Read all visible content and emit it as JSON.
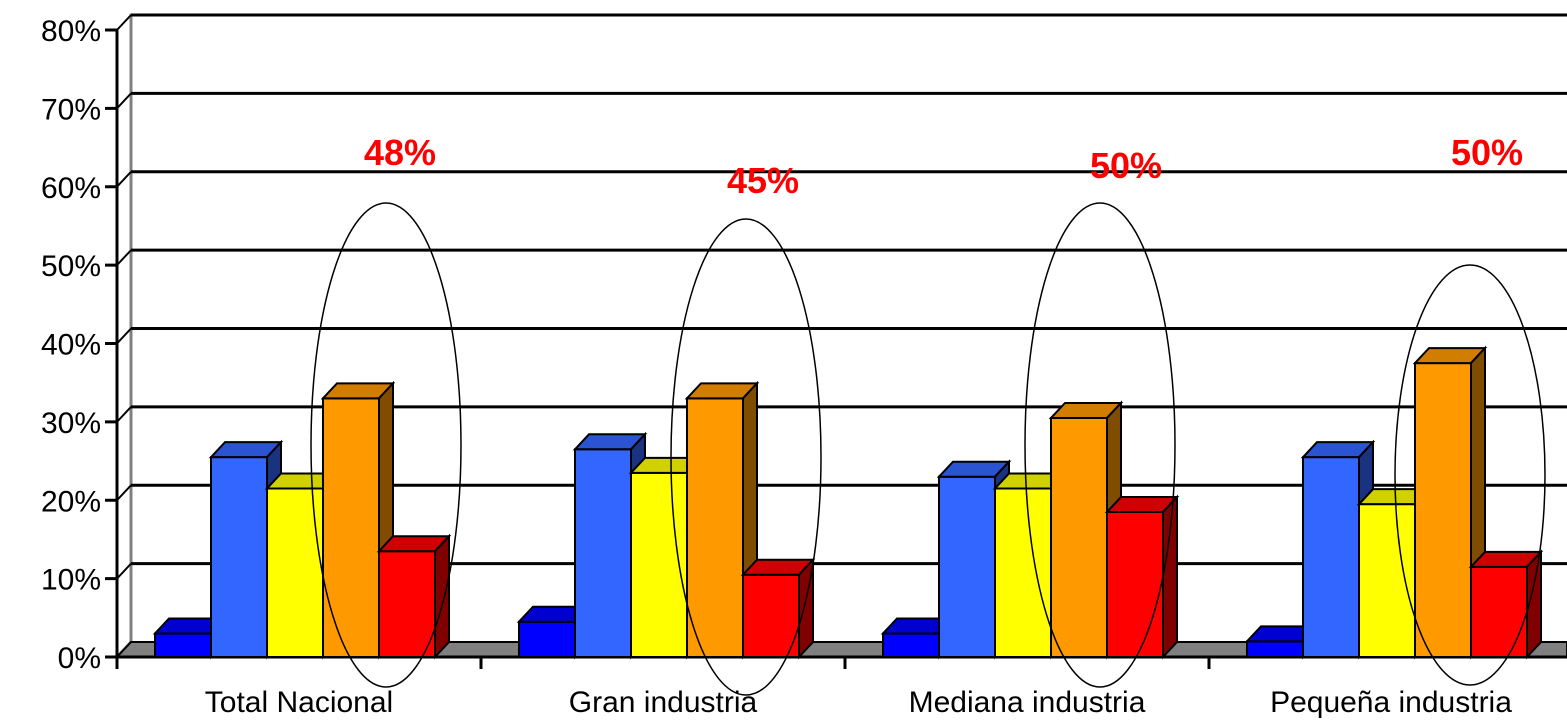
{
  "chart_data": {
    "type": "bar",
    "title": "",
    "xlabel": "",
    "ylabel": "",
    "ylim": [
      0,
      80
    ],
    "y_ticks": [
      "0%",
      "10%",
      "20%",
      "30%",
      "40%",
      "50%",
      "60%",
      "70%",
      "80%"
    ],
    "grid": true,
    "categories": [
      "Total Nacional",
      "Gran industria",
      "Mediana industria",
      "Pequeña industria"
    ],
    "series": [
      {
        "color": "#0000ff",
        "values": [
          3,
          4.5,
          3,
          2
        ]
      },
      {
        "color": "#3366ff",
        "values": [
          25.5,
          26.5,
          23,
          25.5
        ]
      },
      {
        "color": "#ffff00",
        "values": [
          21.5,
          23.5,
          21.5,
          19.5
        ]
      },
      {
        "color": "#ff9900",
        "values": [
          33,
          33,
          30.5,
          37.5
        ]
      },
      {
        "color": "#ff0000",
        "values": [
          13.5,
          10.5,
          18.5,
          11.5
        ]
      }
    ],
    "annotations": [
      {
        "category": "Total Nacional",
        "text": "48%"
      },
      {
        "category": "Gran industria",
        "text": "45%"
      },
      {
        "category": "Mediana industria",
        "text": "50%"
      },
      {
        "category": "Pequeña industria",
        "text": "50%"
      }
    ]
  }
}
